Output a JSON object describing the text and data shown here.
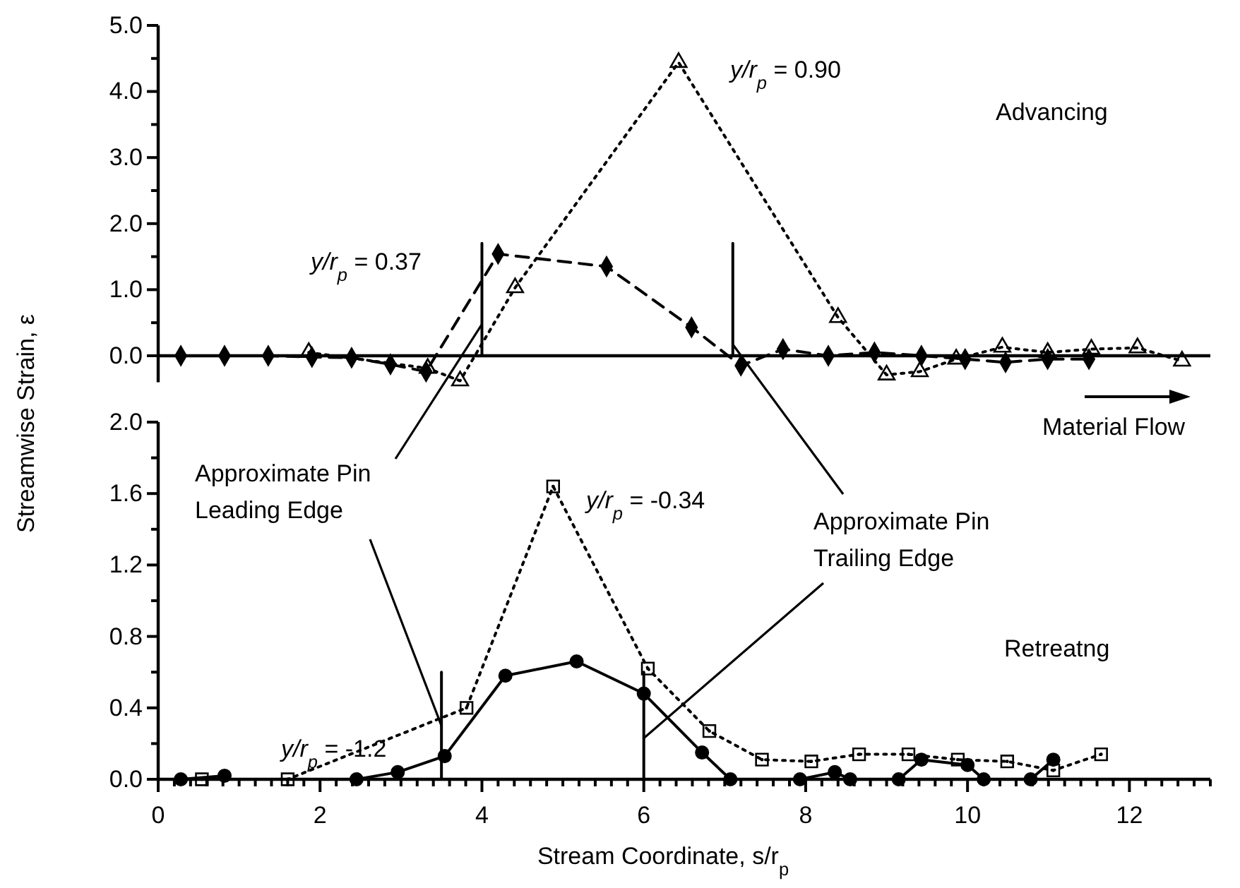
{
  "chart_data": [
    {
      "type": "line",
      "ylabel": "Streamwise Strain, ε",
      "xlim": [
        0,
        13
      ],
      "ylim": [
        -0.4,
        5
      ],
      "tick_labels": "y",
      "yticks": [
        {
          "value": 0,
          "label": "0.0"
        },
        {
          "value": 0.5,
          "label": null
        },
        {
          "value": 1,
          "label": "1.0"
        },
        {
          "value": 1.5,
          "label": null
        },
        {
          "value": 2,
          "label": "2.0"
        },
        {
          "value": 2.5,
          "label": null
        },
        {
          "value": 3,
          "label": "3.0"
        },
        {
          "value": 3.5,
          "label": null
        },
        {
          "value": 4,
          "label": "4.0"
        },
        {
          "value": 4.5,
          "label": null
        },
        {
          "value": 5,
          "label": "5.0"
        }
      ],
      "series": [
        {
          "name": "y/r$_{p}$ = 0.37",
          "color": "#000000",
          "marker": "diamond",
          "line_style": "dashed",
          "x": [
            0.28,
            0.82,
            1.36,
            1.9,
            2.39,
            2.87,
            3.31,
            4.2,
            5.54,
            6.59,
            7.2,
            7.72,
            8.28,
            8.85,
            9.43,
            9.97,
            10.47,
            10.99,
            11.5
          ],
          "values": [
            0,
            0,
            0,
            -0.02,
            -0.03,
            -0.13,
            -0.24,
            1.54,
            1.35,
            0.43,
            -0.15,
            0.1,
            0,
            0.05,
            0,
            -0.05,
            -0.1,
            -0.05,
            -0.05
          ]
        },
        {
          "name": "y/r$_{p}$ = 0.90",
          "color": "#000000",
          "marker": "triangle",
          "line_style": "dotted",
          "x": [
            1.86,
            3.33,
            3.73,
            4.41,
            6.43,
            8.4,
            9.0,
            9.41,
            9.86,
            10.43,
            10.99,
            11.53,
            12.1,
            12.65
          ],
          "values": [
            0.05,
            -0.19,
            -0.38,
            1.03,
            4.44,
            0.58,
            -0.29,
            -0.24,
            -0.05,
            0.13,
            0.05,
            0.1,
            0.12,
            -0.08
          ]
        },
        {
          "type": "line",
          "color": "#000000",
          "marker": "none",
          "line_style": "solid",
          "x": [
            4.0,
            4.0
          ],
          "values": [
            0,
            1.7
          ]
        },
        {
          "type": "line",
          "color": "#000000",
          "marker": "none",
          "line_style": "solid",
          "x": [
            7.1,
            7.1
          ],
          "values": [
            0,
            1.7
          ]
        }
      ],
      "annotations": [
        "Advancing",
        "Material Flow"
      ]
    },
    {
      "type": "line",
      "xlabel": "Stream Coordinate, s/r$_{p}$",
      "xlim": [
        0,
        13
      ],
      "ylim": [
        0,
        2
      ],
      "xticks": [
        0,
        {
          "value": 0.2,
          "label": null
        },
        {
          "value": 0.4,
          "label": null
        },
        {
          "value": 0.6,
          "label": null
        },
        {
          "value": 0.8,
          "label": null
        },
        {
          "value": 1,
          "label": null
        },
        {
          "value": 1.2,
          "label": null
        },
        {
          "value": 1.4,
          "label": null
        },
        {
          "value": 1.6,
          "label": null
        },
        {
          "value": 1.8,
          "label": null
        },
        2,
        {
          "value": 2.2,
          "label": null
        },
        {
          "value": 2.4,
          "label": null
        },
        {
          "value": 2.6,
          "label": null
        },
        {
          "value": 2.8,
          "label": null
        },
        {
          "value": 3,
          "label": null
        },
        {
          "value": 3.2,
          "label": null
        },
        {
          "value": 3.4,
          "label": null
        },
        {
          "value": 3.6,
          "label": null
        },
        {
          "value": 3.8,
          "label": null
        },
        4,
        {
          "value": 4.2,
          "label": null
        },
        {
          "value": 4.4,
          "label": null
        },
        {
          "value": 4.6,
          "label": null
        },
        {
          "value": 4.8,
          "label": null
        },
        {
          "value": 5,
          "label": null
        },
        {
          "value": 5.2,
          "label": null
        },
        {
          "value": 5.4,
          "label": null
        },
        {
          "value": 5.6,
          "label": null
        },
        {
          "value": 5.8,
          "label": null
        },
        6,
        {
          "value": 6.2,
          "label": null
        },
        {
          "value": 6.4,
          "label": null
        },
        {
          "value": 6.6,
          "label": null
        },
        {
          "value": 6.8,
          "label": null
        },
        {
          "value": 7,
          "label": null
        },
        {
          "value": 7.2,
          "label": null
        },
        {
          "value": 7.4,
          "label": null
        },
        {
          "value": 7.6,
          "label": null
        },
        {
          "value": 7.8,
          "label": null
        },
        8,
        {
          "value": 8.2,
          "label": null
        },
        {
          "value": 8.4,
          "label": null
        },
        {
          "value": 8.6,
          "label": null
        },
        {
          "value": 8.8,
          "label": null
        },
        {
          "value": 9,
          "label": null
        },
        {
          "value": 9.2,
          "label": null
        },
        {
          "value": 9.4,
          "label": null
        },
        {
          "value": 9.6,
          "label": null
        },
        {
          "value": 9.8,
          "label": null
        },
        10,
        {
          "value": 10.2,
          "label": null
        },
        {
          "value": 10.4,
          "label": null
        },
        {
          "value": 10.6,
          "label": null
        },
        {
          "value": 10.8,
          "label": null
        },
        {
          "value": 11,
          "label": null
        },
        {
          "value": 11.2,
          "label": null
        },
        {
          "value": 11.4,
          "label": null
        },
        {
          "value": 11.6,
          "label": null
        },
        {
          "value": 11.8,
          "label": null
        },
        12,
        {
          "value": 12.2,
          "label": null
        },
        {
          "value": 12.4,
          "label": null
        },
        {
          "value": 12.6,
          "label": null
        },
        {
          "value": 12.8,
          "label": null
        },
        {
          "value": 13,
          "label": null
        }
      ],
      "yticks": [
        {
          "value": 0,
          "label": "0.0"
        },
        {
          "value": 0.2,
          "label": null
        },
        0.4,
        {
          "value": 0.6,
          "label": null
        },
        0.8,
        {
          "value": 1,
          "label": null
        },
        1.2,
        {
          "value": 1.4,
          "label": null
        },
        1.6,
        {
          "value": 1.8,
          "label": null
        },
        {
          "value": 2,
          "label": "2.0"
        }
      ],
      "series": [
        {
          "name": "y/r$_{p}$ = -0.34",
          "color": "#000000",
          "marker": "square",
          "line_style": "dotted",
          "x": [
            0.54,
            1.6,
            3.81,
            4.88,
            6.05,
            6.81,
            7.46,
            8.07,
            8.66,
            9.27,
            9.88,
            10.49,
            11.06,
            11.65
          ],
          "values": [
            0,
            0,
            0.4,
            1.64,
            0.62,
            0.27,
            0.11,
            0.1,
            0.14,
            0.14,
            0.11,
            0.1,
            0.05,
            0.14
          ]
        },
        {
          "name": "y/r$_{p}$ = -1.2",
          "color": "#000000",
          "marker": "circle",
          "line_style": "solid",
          "x": [
            0.28,
            0.82,
            null,
            2.45,
            2.96,
            3.54,
            4.29,
            5.17,
            6.0,
            6.72,
            7.07,
            null,
            7.93,
            8.36,
            8.55,
            null,
            9.15,
            9.43,
            10.0,
            10.2,
            null,
            10.78,
            11.06
          ],
          "values": [
            0,
            0.02,
            null,
            0,
            0.04,
            0.13,
            0.58,
            0.66,
            0.48,
            0.15,
            0,
            null,
            0,
            0.04,
            0,
            null,
            0,
            0.11,
            0.08,
            0,
            null,
            0,
            0.11
          ]
        },
        {
          "type": "line",
          "color": "#000000",
          "marker": "none",
          "line_style": "solid",
          "x": [
            3.5,
            3.5
          ],
          "values": [
            0,
            0.6
          ]
        },
        {
          "type": "line",
          "color": "#000000",
          "marker": "none",
          "line_style": "solid",
          "x": [
            6.0,
            6.0
          ],
          "values": [
            0,
            0.6
          ]
        }
      ],
      "annotations": [
        {
          "text": "Approximate Pin\nLeading Edge",
          "x": 3.5,
          "y": 0.3
        },
        {
          "text": "Approximate Pin\nTrailing Edge",
          "x": 6.0,
          "y": 0.23
        },
        "Retreatng"
      ]
    }
  ]
}
